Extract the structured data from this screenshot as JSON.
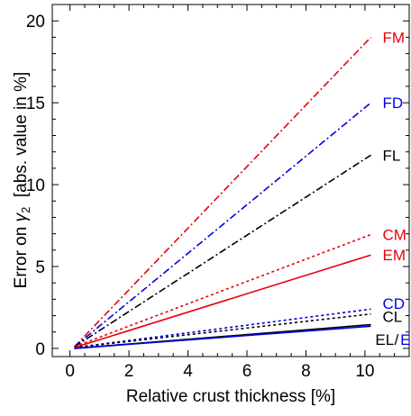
{
  "chart_data": {
    "type": "line",
    "xlabel": "Relative crust thickness [%]",
    "ylabel": {
      "prefix": "Error on ",
      "symbol": "γ",
      "subscript": "2",
      "suffix": "  [abs. value in %]"
    },
    "xlim": [
      -0.6,
      11.5
    ],
    "ylim": [
      -0.5,
      21
    ],
    "xticks": [
      0,
      2,
      4,
      6,
      8,
      10
    ],
    "yticks": [
      0,
      5,
      10,
      15,
      20
    ],
    "grid": false,
    "legend": "inline labels at line ends",
    "colors": {
      "red": "#e8000b",
      "blue": "#0000e0",
      "black": "#000000"
    },
    "series": [
      {
        "name": "FM",
        "color": "#e8000b",
        "dash": "dashdot",
        "x": [
          0.15,
          10.2
        ],
        "y": [
          0.1,
          19.0
        ]
      },
      {
        "name": "FD",
        "color": "#0000e0",
        "dash": "dashdot",
        "x": [
          0.15,
          10.2
        ],
        "y": [
          0.1,
          15.0
        ]
      },
      {
        "name": "FL",
        "color": "#000000",
        "dash": "dashdot",
        "x": [
          0.15,
          10.2
        ],
        "y": [
          0.1,
          11.8
        ]
      },
      {
        "name": "CM",
        "color": "#e8000b",
        "dash": "dotted",
        "x": [
          0.15,
          10.2
        ],
        "y": [
          0.1,
          6.95
        ]
      },
      {
        "name": "EM",
        "color": "#e8000b",
        "dash": "solid",
        "x": [
          0.15,
          10.2
        ],
        "y": [
          0.05,
          5.7
        ]
      },
      {
        "name": "CD",
        "color": "#0000e0",
        "dash": "dotted",
        "x": [
          0.15,
          10.2
        ],
        "y": [
          0.05,
          2.4
        ]
      },
      {
        "name": "CL",
        "color": "#000000",
        "dash": "dotted",
        "x": [
          0.15,
          10.2
        ],
        "y": [
          0.05,
          2.1
        ]
      },
      {
        "name": "EL",
        "color": "#000000",
        "dash": "solid",
        "x": [
          0.15,
          10.2
        ],
        "y": [
          0.0,
          1.45
        ]
      },
      {
        "name": "ED",
        "color": "#0000e0",
        "dash": "solid",
        "x": [
          0.15,
          10.2
        ],
        "y": [
          0.0,
          1.35
        ]
      }
    ],
    "labels": [
      {
        "text": "FM",
        "color": "#e8000b",
        "x": 10.6,
        "y": 19.0
      },
      {
        "text": "FD",
        "color": "#0000e0",
        "x": 10.6,
        "y": 15.0
      },
      {
        "text": "FL",
        "color": "#000000",
        "x": 10.6,
        "y": 11.8
      },
      {
        "text": "CM",
        "color": "#e8000b",
        "x": 10.6,
        "y": 6.95
      },
      {
        "text": "EM",
        "color": "#e8000b",
        "x": 10.6,
        "y": 5.7
      },
      {
        "text": "CD",
        "color": "#0000e0",
        "x": 10.6,
        "y": 2.75
      },
      {
        "text": "CL",
        "color": "#000000",
        "x": 10.6,
        "y": 1.95
      },
      {
        "text": "EL",
        "color": "#000000",
        "x": 10.35,
        "y": 0.55
      },
      {
        "text": "/",
        "color": "#000000",
        "x": 11.0,
        "y": 0.55
      },
      {
        "text": "ED",
        "color": "#0000e0",
        "x": 11.2,
        "y": 0.55
      }
    ]
  }
}
